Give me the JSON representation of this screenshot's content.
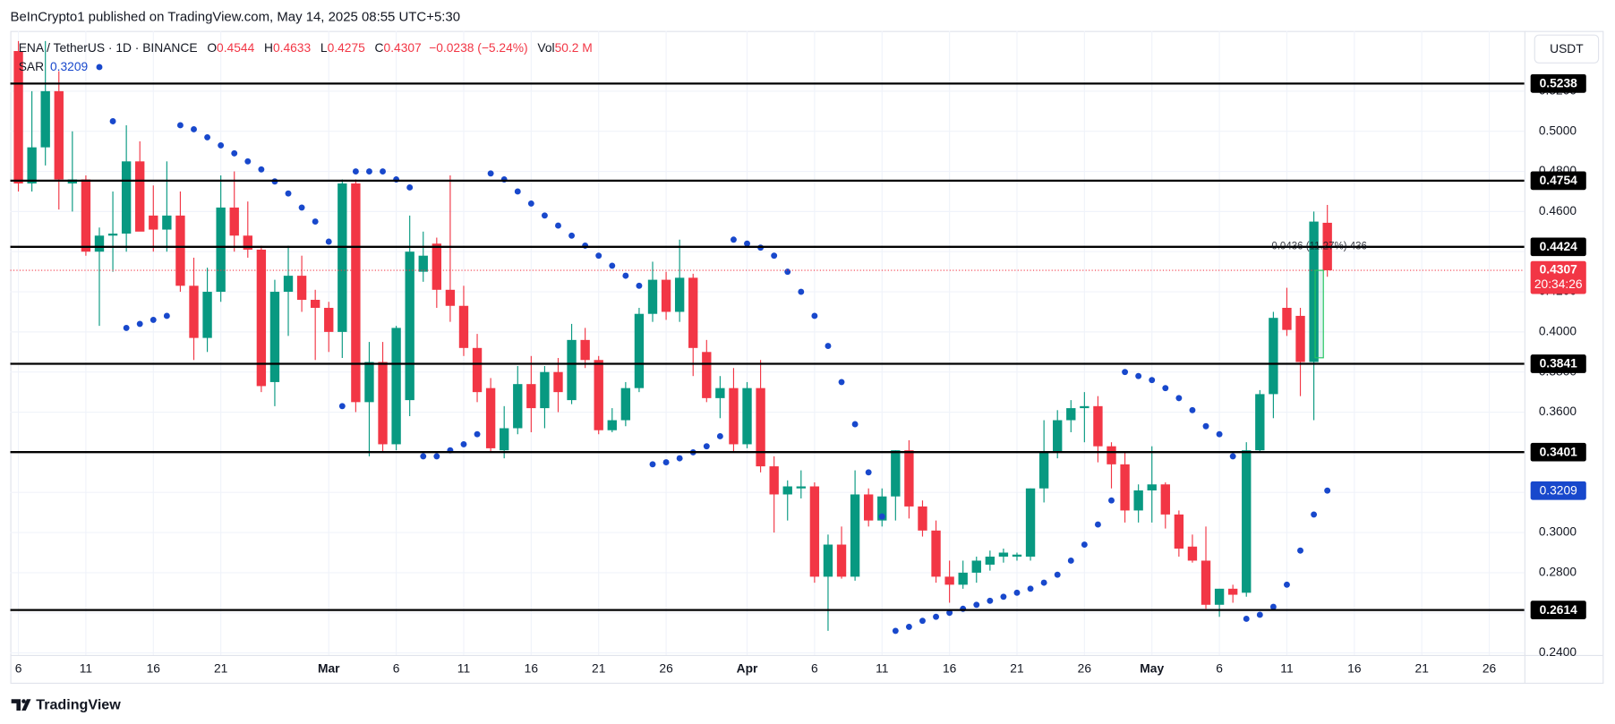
{
  "header": {
    "published": "BeInCrypto1 published on TradingView.com, May 14, 2025 08:55 UTC+5:30"
  },
  "chart_data": {
    "type": "candlestick",
    "legend": {
      "symbol": "ENA / TetherUS · 1D · BINANCE",
      "o": "O",
      "h": "H",
      "l": "L",
      "c": "C",
      "change": "−0.0238 (−5.24%)",
      "vol_label": "Vol",
      "volume": "50.2 M"
    },
    "currency": "USDT",
    "up_color": "#089981",
    "down_color": "#f23645",
    "grid": true,
    "candles": {
      "open": [
        0.54,
        0.474,
        0.492,
        0.52,
        0.474,
        0.476,
        0.44,
        0.448,
        0.449,
        0.485,
        0.458,
        0.451,
        0.458,
        0.423,
        0.397,
        0.42,
        0.462,
        0.448,
        0.441,
        0.375,
        0.42,
        0.428,
        0.416,
        0.412,
        0.4,
        0.474,
        0.365,
        0.385,
        0.344,
        0.366,
        0.43,
        0.444,
        0.421,
        0.413,
        0.392,
        0.372,
        0.341,
        0.352,
        0.374,
        0.362,
        0.38,
        0.366,
        0.396,
        0.386,
        0.351,
        0.356,
        0.372,
        0.409,
        0.426,
        0.41,
        0.427,
        0.39,
        0.367,
        0.372,
        0.344,
        0.372,
        0.333,
        0.319,
        0.322,
        0.323,
        0.278,
        0.294,
        0.278,
        0.319,
        0.306,
        0.318,
        0.341,
        0.313,
        0.301,
        0.278,
        0.274,
        0.28,
        0.284,
        0.288,
        0.288,
        0.288,
        0.322,
        0.34,
        0.356,
        0.362,
        0.363,
        0.343,
        0.334,
        0.311,
        0.321,
        0.324,
        0.309,
        0.293,
        0.286,
        0.264,
        0.272,
        0.27,
        0.341,
        0.369,
        0.412,
        0.408,
        0.385,
        0.4544
      ],
      "high": [
        0.545,
        0.52,
        0.545,
        0.53,
        0.5,
        0.478,
        0.452,
        0.47,
        0.503,
        0.495,
        0.473,
        0.485,
        0.47,
        0.437,
        0.432,
        0.478,
        0.48,
        0.465,
        0.443,
        0.426,
        0.443,
        0.438,
        0.421,
        0.415,
        0.476,
        0.476,
        0.395,
        0.395,
        0.403,
        0.458,
        0.45,
        0.447,
        0.478,
        0.423,
        0.399,
        0.377,
        0.363,
        0.383,
        0.388,
        0.383,
        0.387,
        0.404,
        0.402,
        0.388,
        0.362,
        0.375,
        0.412,
        0.435,
        0.43,
        0.446,
        0.429,
        0.396,
        0.378,
        0.382,
        0.375,
        0.386,
        0.338,
        0.326,
        0.331,
        0.325,
        0.299,
        0.303,
        0.331,
        0.322,
        0.322,
        0.341,
        0.346,
        0.316,
        0.306,
        0.286,
        0.286,
        0.288,
        0.291,
        0.292,
        0.29,
        0.322,
        0.356,
        0.361,
        0.366,
        0.37,
        0.368,
        0.345,
        0.34,
        0.324,
        0.343,
        0.325,
        0.311,
        0.299,
        0.303,
        0.272,
        0.274,
        0.345,
        0.371,
        0.41,
        0.422,
        0.412,
        0.46,
        0.4633
      ],
      "low": [
        0.47,
        0.47,
        0.483,
        0.461,
        0.46,
        0.438,
        0.403,
        0.43,
        0.44,
        0.451,
        0.44,
        0.44,
        0.42,
        0.386,
        0.39,
        0.415,
        0.44,
        0.437,
        0.37,
        0.363,
        0.398,
        0.41,
        0.386,
        0.39,
        0.387,
        0.36,
        0.338,
        0.34,
        0.341,
        0.358,
        0.425,
        0.412,
        0.405,
        0.388,
        0.365,
        0.34,
        0.337,
        0.349,
        0.35,
        0.352,
        0.36,
        0.364,
        0.382,
        0.349,
        0.35,
        0.353,
        0.37,
        0.405,
        0.406,
        0.405,
        0.378,
        0.365,
        0.357,
        0.34,
        0.342,
        0.33,
        0.3,
        0.306,
        0.317,
        0.275,
        0.251,
        0.277,
        0.276,
        0.303,
        0.303,
        0.306,
        0.307,
        0.298,
        0.275,
        0.265,
        0.272,
        0.275,
        0.281,
        0.285,
        0.286,
        0.286,
        0.315,
        0.337,
        0.35,
        0.345,
        0.335,
        0.322,
        0.305,
        0.305,
        0.305,
        0.302,
        0.288,
        0.285,
        0.262,
        0.258,
        0.265,
        0.268,
        0.34,
        0.357,
        0.398,
        0.368,
        0.356,
        0.4275
      ],
      "close": [
        0.474,
        0.492,
        0.52,
        0.476,
        0.476,
        0.44,
        0.448,
        0.449,
        0.485,
        0.45,
        0.451,
        0.458,
        0.423,
        0.397,
        0.42,
        0.462,
        0.448,
        0.441,
        0.373,
        0.42,
        0.428,
        0.416,
        0.412,
        0.4,
        0.474,
        0.365,
        0.385,
        0.344,
        0.402,
        0.44,
        0.438,
        0.421,
        0.413,
        0.392,
        0.37,
        0.342,
        0.352,
        0.374,
        0.362,
        0.38,
        0.37,
        0.396,
        0.386,
        0.351,
        0.356,
        0.372,
        0.409,
        0.426,
        0.41,
        0.427,
        0.392,
        0.367,
        0.372,
        0.344,
        0.372,
        0.333,
        0.319,
        0.323,
        0.323,
        0.278,
        0.294,
        0.278,
        0.319,
        0.306,
        0.318,
        0.341,
        0.313,
        0.301,
        0.278,
        0.274,
        0.28,
        0.286,
        0.288,
        0.29,
        0.289,
        0.322,
        0.34,
        0.356,
        0.362,
        0.363,
        0.343,
        0.334,
        0.311,
        0.321,
        0.324,
        0.309,
        0.292,
        0.286,
        0.264,
        0.272,
        0.269,
        0.341,
        0.369,
        0.407,
        0.401,
        0.385,
        0.455,
        0.4307
      ]
    },
    "sar": {
      "name": "SAR",
      "color": "#1848cc",
      "values": [
        null,
        null,
        null,
        null,
        null,
        null,
        0.532,
        0.505,
        0.402,
        0.404,
        0.406,
        0.408,
        0.503,
        0.501,
        0.497,
        0.493,
        0.489,
        0.485,
        0.481,
        0.475,
        0.469,
        0.462,
        0.455,
        0.445,
        0.363,
        0.48,
        0.48,
        0.48,
        0.476,
        0.472,
        0.338,
        0.338,
        0.341,
        0.344,
        0.349,
        0.479,
        0.476,
        0.47,
        0.464,
        0.458,
        0.453,
        0.448,
        0.443,
        0.438,
        0.433,
        0.428,
        0.423,
        0.334,
        0.335,
        0.337,
        0.34,
        0.343,
        0.348,
        0.446,
        0.444,
        0.442,
        0.438,
        0.43,
        0.42,
        0.408,
        0.393,
        0.375,
        0.354,
        0.33,
        0.308,
        0.251,
        0.253,
        0.256,
        0.258,
        0.26,
        0.262,
        0.264,
        0.266,
        0.268,
        0.27,
        0.272,
        0.275,
        0.279,
        0.286,
        0.294,
        0.304,
        0.316,
        0.38,
        0.378,
        0.376,
        0.372,
        0.367,
        0.361,
        0.353,
        0.349,
        0.338,
        0.257,
        0.259,
        0.263,
        0.274,
        0.291,
        0.309,
        0.3209
      ]
    },
    "levels": [
      0.5238,
      0.4754,
      0.4424,
      0.3841,
      0.3401,
      0.2614
    ],
    "countdown": "20:34:26",
    "measure": {
      "start": 0.3871,
      "end": 0.4307,
      "label": "0.0436 (11.27%) 436"
    },
    "ylim": [
      0.239,
      0.55
    ],
    "yticks": [
      {
        "value": 0.24,
        "label": "0.2400"
      },
      {
        "value": 0.26,
        "label": "0.2600"
      },
      {
        "value": 0.28,
        "label": "0.2800"
      },
      {
        "value": 0.3,
        "label": "0.3000"
      },
      {
        "value": 0.32,
        "label": "0.3200"
      },
      {
        "value": 0.34,
        "label": "0.3400"
      },
      {
        "value": 0.36,
        "label": "0.3600"
      },
      {
        "value": 0.38,
        "label": "0.3800"
      },
      {
        "value": 0.4,
        "label": "0.4000"
      },
      {
        "value": 0.42,
        "label": "0.4200"
      },
      {
        "value": 0.44,
        "label": "0.4400"
      },
      {
        "value": 0.46,
        "label": "0.4600"
      },
      {
        "value": 0.48,
        "label": "0.4800"
      },
      {
        "value": 0.5,
        "label": "0.5000"
      },
      {
        "value": 0.52,
        "label": "0.5200"
      }
    ],
    "xlim": [
      -0.6,
      111.6
    ],
    "xticks": [
      {
        "value": 0,
        "label": "6"
      },
      {
        "value": 5,
        "label": "11"
      },
      {
        "value": 10,
        "label": "16"
      },
      {
        "value": 15,
        "label": "21"
      },
      {
        "value": 23,
        "label": "Mar"
      },
      {
        "value": 28,
        "label": "6"
      },
      {
        "value": 33,
        "label": "11"
      },
      {
        "value": 38,
        "label": "16"
      },
      {
        "value": 43,
        "label": "21"
      },
      {
        "value": 48,
        "label": "26"
      },
      {
        "value": 54,
        "label": "Apr"
      },
      {
        "value": 59,
        "label": "6"
      },
      {
        "value": 64,
        "label": "11"
      },
      {
        "value": 69,
        "label": "16"
      },
      {
        "value": 74,
        "label": "21"
      },
      {
        "value": 79,
        "label": "26"
      },
      {
        "value": 84,
        "label": "May"
      },
      {
        "value": 89,
        "label": "6"
      },
      {
        "value": 94,
        "label": "11"
      },
      {
        "value": 99,
        "label": "16"
      },
      {
        "value": 104,
        "label": "21"
      },
      {
        "value": 109,
        "label": "26"
      }
    ]
  },
  "footer": {
    "brand": "TradingView"
  }
}
